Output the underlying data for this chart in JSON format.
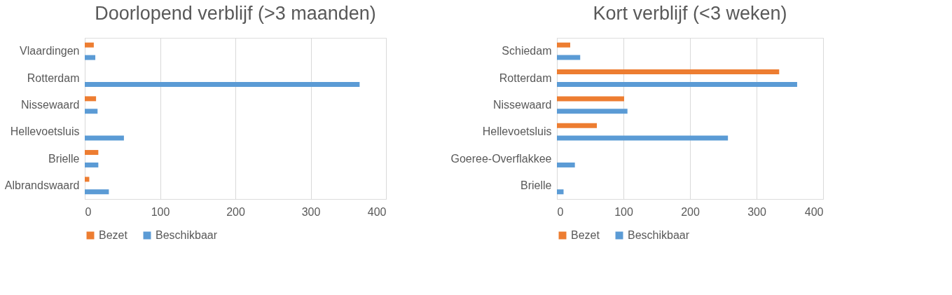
{
  "chart_data": [
    {
      "type": "bar",
      "orientation": "horizontal",
      "title": "Doorlopend verblijf (>3 maanden)",
      "categories": [
        "Vlaardingen",
        "Rotterdam",
        "Nissewaard",
        "Hellevoetsluis",
        "Brielle",
        "Albrandswaard"
      ],
      "series": [
        {
          "name": "Bezet",
          "color": "#ed7d31",
          "values": [
            12,
            null,
            15,
            null,
            18,
            6
          ]
        },
        {
          "name": "Beschikbaar",
          "color": "#5b9bd5",
          "values": [
            14,
            365,
            17,
            52,
            18,
            32
          ]
        }
      ],
      "xlim": [
        0,
        400
      ],
      "xticks": [
        0,
        100,
        200,
        300,
        400
      ],
      "grid": "x",
      "legend": "bottom"
    },
    {
      "type": "bar",
      "orientation": "horizontal",
      "title": "Kort verblijf (<3 weken)",
      "categories": [
        "Schiedam",
        "Rotterdam",
        "Nissewaard",
        "Hellevoetsluis",
        "Goeree-Overflakkee",
        "Brielle"
      ],
      "series": [
        {
          "name": "Bezet",
          "color": "#ed7d31",
          "values": [
            20,
            334,
            101,
            60,
            null,
            null
          ]
        },
        {
          "name": "Beschikbaar",
          "color": "#5b9bd5",
          "values": [
            35,
            361,
            106,
            257,
            27,
            10
          ]
        }
      ],
      "xlim": [
        0,
        400
      ],
      "xticks": [
        0,
        100,
        200,
        300,
        400
      ],
      "grid": "x",
      "legend": "bottom"
    }
  ]
}
